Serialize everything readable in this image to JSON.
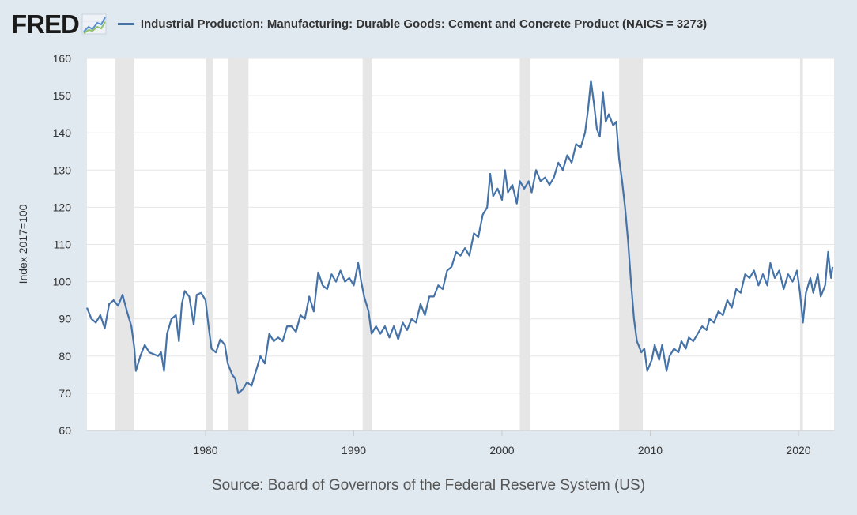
{
  "header": {
    "logo_text": "FRED",
    "logo_icon": "trend-chart-icon",
    "legend_label": "Industrial Production: Manufacturing: Durable Goods: Cement and Concrete Product (NAICS = 3273)"
  },
  "source": "Source: Board of Governors of the Federal Reserve System (US)",
  "colors": {
    "series": "#4572a7",
    "recession": "#e6e6e6",
    "background": "#e1e9f0",
    "plot": "#ffffff",
    "grid": "#e6e6e6"
  },
  "chart_data": {
    "type": "line",
    "title": "",
    "xlabel": "",
    "ylabel": "Index 2017=100",
    "xlim": [
      1972.0,
      2022.4
    ],
    "ylim": [
      60,
      160
    ],
    "x_ticks": [
      1980,
      1990,
      2000,
      2010,
      2020
    ],
    "y_ticks": [
      60,
      70,
      80,
      90,
      100,
      110,
      120,
      130,
      140,
      150,
      160
    ],
    "grid": true,
    "legend_position": "top",
    "recessions": [
      [
        1973.9,
        1975.2
      ],
      [
        1980.0,
        1980.5
      ],
      [
        1981.5,
        1982.9
      ],
      [
        1990.6,
        1991.2
      ],
      [
        2001.2,
        2001.9
      ],
      [
        2007.9,
        2009.5
      ],
      [
        2020.1,
        2020.3
      ]
    ],
    "series": [
      {
        "name": "Industrial Production: Manufacturing: Durable Goods: Cement and Concrete Product (NAICS = 3273)",
        "points": [
          [
            1972.0,
            93.0
          ],
          [
            1972.3,
            90.0
          ],
          [
            1972.6,
            89.0
          ],
          [
            1972.9,
            91.0
          ],
          [
            1973.2,
            87.5
          ],
          [
            1973.5,
            94.0
          ],
          [
            1973.8,
            95.0
          ],
          [
            1974.1,
            93.5
          ],
          [
            1974.4,
            96.5
          ],
          [
            1974.7,
            92.0
          ],
          [
            1975.0,
            88.0
          ],
          [
            1975.2,
            82.0
          ],
          [
            1975.3,
            76.0
          ],
          [
            1975.6,
            80.0
          ],
          [
            1975.9,
            83.0
          ],
          [
            1976.2,
            81.0
          ],
          [
            1976.5,
            80.5
          ],
          [
            1976.8,
            80.0
          ],
          [
            1977.0,
            81.0
          ],
          [
            1977.2,
            76.0
          ],
          [
            1977.4,
            86.0
          ],
          [
            1977.7,
            90.0
          ],
          [
            1978.0,
            91.0
          ],
          [
            1978.2,
            84.0
          ],
          [
            1978.4,
            94.0
          ],
          [
            1978.6,
            97.5
          ],
          [
            1978.9,
            96.0
          ],
          [
            1979.2,
            88.5
          ],
          [
            1979.4,
            96.5
          ],
          [
            1979.7,
            97.0
          ],
          [
            1980.0,
            95.0
          ],
          [
            1980.2,
            88.0
          ],
          [
            1980.4,
            82.0
          ],
          [
            1980.7,
            81.0
          ],
          [
            1981.0,
            84.5
          ],
          [
            1981.3,
            83.0
          ],
          [
            1981.5,
            78.0
          ],
          [
            1981.8,
            75.0
          ],
          [
            1982.0,
            74.0
          ],
          [
            1982.2,
            70.0
          ],
          [
            1982.5,
            71.0
          ],
          [
            1982.8,
            73.0
          ],
          [
            1983.1,
            72.0
          ],
          [
            1983.4,
            76.0
          ],
          [
            1983.7,
            80.0
          ],
          [
            1984.0,
            78.0
          ],
          [
            1984.3,
            86.0
          ],
          [
            1984.6,
            84.0
          ],
          [
            1984.9,
            85.0
          ],
          [
            1985.2,
            84.0
          ],
          [
            1985.5,
            88.0
          ],
          [
            1985.8,
            88.0
          ],
          [
            1986.1,
            86.5
          ],
          [
            1986.4,
            91.0
          ],
          [
            1986.7,
            90.0
          ],
          [
            1987.0,
            96.0
          ],
          [
            1987.3,
            92.0
          ],
          [
            1987.6,
            102.5
          ],
          [
            1987.9,
            99.0
          ],
          [
            1988.2,
            98.0
          ],
          [
            1988.5,
            102.0
          ],
          [
            1988.8,
            100.0
          ],
          [
            1989.1,
            103.0
          ],
          [
            1989.4,
            100.0
          ],
          [
            1989.7,
            101.0
          ],
          [
            1990.0,
            99.0
          ],
          [
            1990.3,
            105.0
          ],
          [
            1990.5,
            100.0
          ],
          [
            1990.7,
            96.0
          ],
          [
            1991.0,
            92.0
          ],
          [
            1991.2,
            86.0
          ],
          [
            1991.5,
            88.0
          ],
          [
            1991.8,
            86.0
          ],
          [
            1992.1,
            88.0
          ],
          [
            1992.4,
            85.0
          ],
          [
            1992.7,
            88.0
          ],
          [
            1993.0,
            84.5
          ],
          [
            1993.3,
            89.0
          ],
          [
            1993.6,
            87.0
          ],
          [
            1993.9,
            90.0
          ],
          [
            1994.2,
            89.0
          ],
          [
            1994.5,
            94.0
          ],
          [
            1994.8,
            91.0
          ],
          [
            1995.1,
            96.0
          ],
          [
            1995.4,
            96.0
          ],
          [
            1995.7,
            99.0
          ],
          [
            1996.0,
            98.0
          ],
          [
            1996.3,
            103.0
          ],
          [
            1996.6,
            104.0
          ],
          [
            1996.9,
            108.0
          ],
          [
            1997.2,
            107.0
          ],
          [
            1997.5,
            109.0
          ],
          [
            1997.8,
            107.0
          ],
          [
            1998.1,
            113.0
          ],
          [
            1998.4,
            112.0
          ],
          [
            1998.7,
            118.0
          ],
          [
            1999.0,
            120.0
          ],
          [
            1999.2,
            129.0
          ],
          [
            1999.4,
            123.0
          ],
          [
            1999.7,
            125.0
          ],
          [
            2000.0,
            122.0
          ],
          [
            2000.2,
            130.0
          ],
          [
            2000.4,
            124.0
          ],
          [
            2000.7,
            126.0
          ],
          [
            2001.0,
            121.0
          ],
          [
            2001.2,
            127.0
          ],
          [
            2001.5,
            125.0
          ],
          [
            2001.8,
            127.0
          ],
          [
            2002.0,
            124.0
          ],
          [
            2002.3,
            130.0
          ],
          [
            2002.6,
            127.0
          ],
          [
            2002.9,
            128.0
          ],
          [
            2003.2,
            126.0
          ],
          [
            2003.5,
            128.0
          ],
          [
            2003.8,
            132.0
          ],
          [
            2004.1,
            130.0
          ],
          [
            2004.4,
            134.0
          ],
          [
            2004.7,
            132.0
          ],
          [
            2005.0,
            137.0
          ],
          [
            2005.3,
            136.0
          ],
          [
            2005.6,
            140.0
          ],
          [
            2005.8,
            146.0
          ],
          [
            2006.0,
            154.0
          ],
          [
            2006.2,
            148.0
          ],
          [
            2006.4,
            141.0
          ],
          [
            2006.6,
            139.0
          ],
          [
            2006.8,
            151.0
          ],
          [
            2007.0,
            143.0
          ],
          [
            2007.2,
            145.0
          ],
          [
            2007.5,
            142.0
          ],
          [
            2007.7,
            143.0
          ],
          [
            2007.9,
            133.0
          ],
          [
            2008.1,
            127.0
          ],
          [
            2008.3,
            120.0
          ],
          [
            2008.5,
            111.0
          ],
          [
            2008.7,
            100.0
          ],
          [
            2008.9,
            90.0
          ],
          [
            2009.1,
            84.0
          ],
          [
            2009.4,
            81.0
          ],
          [
            2009.6,
            82.0
          ],
          [
            2009.8,
            76.0
          ],
          [
            2010.1,
            79.0
          ],
          [
            2010.3,
            83.0
          ],
          [
            2010.6,
            79.0
          ],
          [
            2010.8,
            83.0
          ],
          [
            2011.1,
            76.0
          ],
          [
            2011.3,
            80.0
          ],
          [
            2011.6,
            82.0
          ],
          [
            2011.9,
            81.0
          ],
          [
            2012.1,
            84.0
          ],
          [
            2012.4,
            82.0
          ],
          [
            2012.6,
            85.0
          ],
          [
            2012.9,
            84.0
          ],
          [
            2013.2,
            86.0
          ],
          [
            2013.5,
            88.0
          ],
          [
            2013.8,
            87.0
          ],
          [
            2014.0,
            90.0
          ],
          [
            2014.3,
            89.0
          ],
          [
            2014.6,
            92.0
          ],
          [
            2014.9,
            91.0
          ],
          [
            2015.2,
            95.0
          ],
          [
            2015.5,
            93.0
          ],
          [
            2015.8,
            98.0
          ],
          [
            2016.1,
            97.0
          ],
          [
            2016.4,
            102.0
          ],
          [
            2016.7,
            101.0
          ],
          [
            2017.0,
            103.0
          ],
          [
            2017.3,
            99.0
          ],
          [
            2017.6,
            102.0
          ],
          [
            2017.9,
            99.0
          ],
          [
            2018.1,
            105.0
          ],
          [
            2018.4,
            101.0
          ],
          [
            2018.7,
            103.0
          ],
          [
            2019.0,
            98.0
          ],
          [
            2019.3,
            102.0
          ],
          [
            2019.6,
            100.0
          ],
          [
            2019.9,
            103.0
          ],
          [
            2020.1,
            97.0
          ],
          [
            2020.3,
            89.0
          ],
          [
            2020.5,
            97.0
          ],
          [
            2020.8,
            101.0
          ],
          [
            2021.0,
            97.0
          ],
          [
            2021.3,
            102.0
          ],
          [
            2021.5,
            96.0
          ],
          [
            2021.8,
            99.0
          ],
          [
            2022.0,
            108.0
          ],
          [
            2022.1,
            104.0
          ],
          [
            2022.2,
            101.0
          ],
          [
            2022.3,
            104.0
          ]
        ]
      }
    ]
  }
}
